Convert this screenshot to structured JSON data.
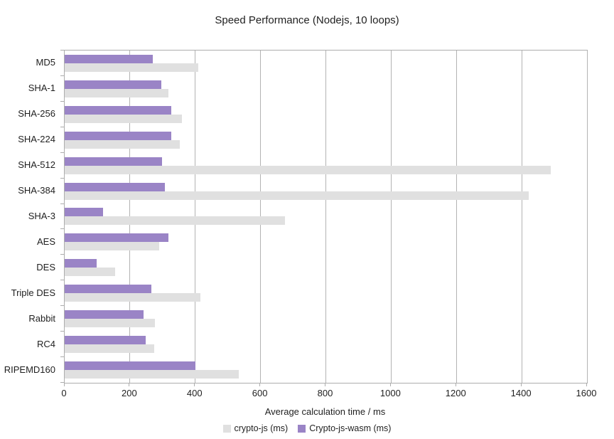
{
  "chart_data": {
    "type": "bar",
    "orientation": "horizontal",
    "title": "Speed Performance (Nodejs, 10 loops)",
    "xlabel": "Average calculation time / ms",
    "xlim": [
      0,
      1600
    ],
    "xticks": [
      0,
      200,
      400,
      600,
      800,
      1000,
      1200,
      1400,
      1600
    ],
    "grid": true,
    "legend_position": "bottom",
    "categories": [
      "MD5",
      "SHA-1",
      "SHA-256",
      "SHA-224",
      "SHA-512",
      "SHA-384",
      "SHA-3",
      "AES",
      "DES",
      "Triple DES",
      "Rabbit",
      "RC4",
      "RIPEMD160"
    ],
    "series": [
      {
        "name": "crypto-js (ms)",
        "color": "#e0e0e0",
        "values": [
          410,
          318,
          360,
          353,
          1490,
          1422,
          675,
          290,
          155,
          415,
          277,
          274,
          534
        ]
      },
      {
        "name": "Crypto-js-wasm (ms)",
        "color": "#9a84c6",
        "values": [
          270,
          295,
          327,
          327,
          298,
          306,
          118,
          318,
          99,
          265,
          241,
          249,
          401
        ]
      }
    ]
  },
  "colors": {
    "grid": "#b3b3b3",
    "axis": "#adadad",
    "text": "#1f1f1f",
    "background": "#ffffff"
  }
}
